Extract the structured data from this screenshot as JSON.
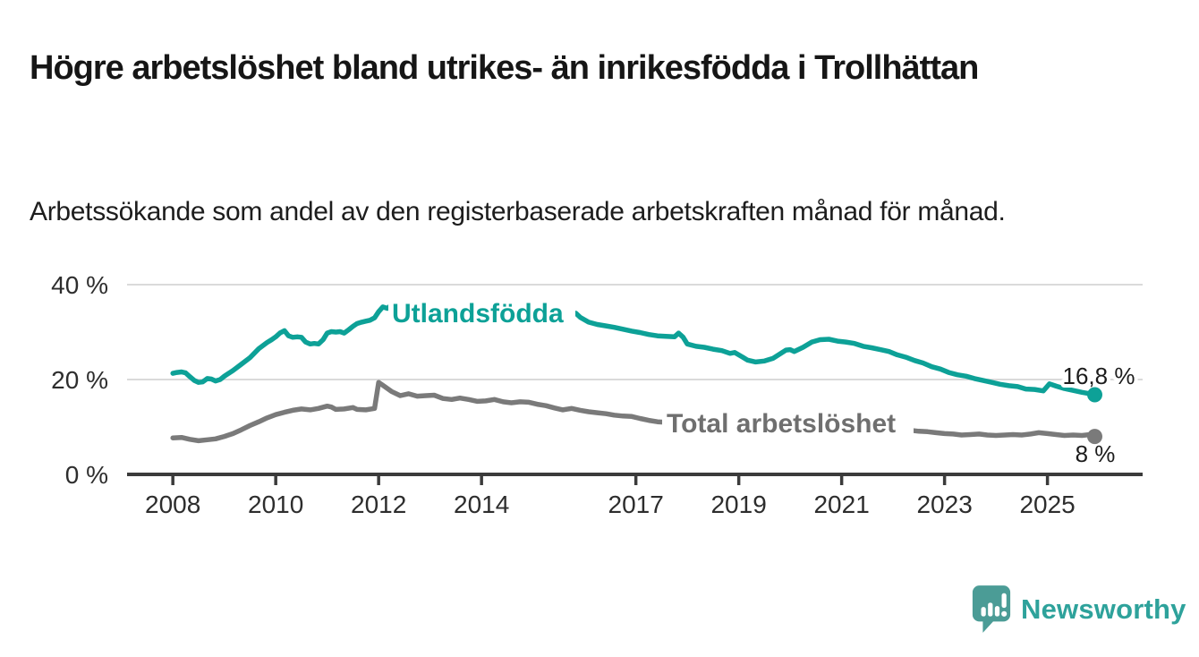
{
  "header": {
    "title": "Högre arbetslöshet bland utrikes- än inrikesfödda i Trollhättan",
    "subtitle": "Arbetssökande som andel av den registerbaserade arbetskraften månad för månad."
  },
  "colors": {
    "accent_teal": "#0da197",
    "line_gray": "#7a7a7a",
    "axis": "#3b3b3b",
    "gridline": "#dadada",
    "text_dark": "#161616",
    "logo_teal": "#4b9c96"
  },
  "logo": {
    "text": "Newsworthy",
    "icon": "newsworthy-speech-bubble-bars-icon"
  },
  "chart_data": {
    "type": "line",
    "title": "Högre arbetslöshet bland utrikes- än inrikesfödda i Trollhättan",
    "subtitle": "Arbetssökande som andel av den registerbaserade arbetskraften månad för månad.",
    "unit": "%",
    "grid": true,
    "legend_position": "inline-labels",
    "xlim": [
      2007.11,
      2026.85
    ],
    "ylim": [
      0,
      44
    ],
    "y_ticks": [
      {
        "value": 0,
        "label": "0 %"
      },
      {
        "value": 20,
        "label": "20 %"
      },
      {
        "value": 40,
        "label": "40 %"
      }
    ],
    "x_ticks": [
      {
        "year": 2008,
        "label": "2008"
      },
      {
        "year": 2010,
        "label": "2010"
      },
      {
        "year": 2012,
        "label": "2012"
      },
      {
        "year": 2014,
        "label": "2014"
      },
      {
        "year": 2017,
        "label": "2017"
      },
      {
        "year": 2019,
        "label": "2019"
      },
      {
        "year": 2021,
        "label": "2021"
      },
      {
        "year": 2023,
        "label": "2023"
      },
      {
        "year": 2025,
        "label": "2025"
      }
    ],
    "series": [
      {
        "name": "Utlandsfödda",
        "color": "#0da197",
        "end_label": "16,8 %",
        "end_value": 16.8,
        "points": [
          [
            2008.0,
            21.3
          ],
          [
            2008.08,
            21.5
          ],
          [
            2008.17,
            21.6
          ],
          [
            2008.25,
            21.4
          ],
          [
            2008.33,
            20.6
          ],
          [
            2008.42,
            19.8
          ],
          [
            2008.5,
            19.4
          ],
          [
            2008.58,
            19.5
          ],
          [
            2008.67,
            20.2
          ],
          [
            2008.75,
            20.1
          ],
          [
            2008.83,
            19.7
          ],
          [
            2008.92,
            20.0
          ],
          [
            2009.0,
            20.7
          ],
          [
            2009.17,
            21.9
          ],
          [
            2009.33,
            23.2
          ],
          [
            2009.5,
            24.6
          ],
          [
            2009.67,
            26.5
          ],
          [
            2009.83,
            27.8
          ],
          [
            2009.92,
            28.4
          ],
          [
            2010.0,
            29.0
          ],
          [
            2010.08,
            29.8
          ],
          [
            2010.17,
            30.3
          ],
          [
            2010.25,
            29.2
          ],
          [
            2010.33,
            28.9
          ],
          [
            2010.42,
            29.0
          ],
          [
            2010.5,
            28.9
          ],
          [
            2010.58,
            27.9
          ],
          [
            2010.67,
            27.5
          ],
          [
            2010.75,
            27.6
          ],
          [
            2010.83,
            27.5
          ],
          [
            2010.92,
            28.4
          ],
          [
            2011.0,
            29.8
          ],
          [
            2011.08,
            30.1
          ],
          [
            2011.17,
            30.0
          ],
          [
            2011.25,
            30.1
          ],
          [
            2011.33,
            29.8
          ],
          [
            2011.42,
            30.5
          ],
          [
            2011.5,
            31.2
          ],
          [
            2011.58,
            31.8
          ],
          [
            2011.67,
            32.1
          ],
          [
            2011.75,
            32.3
          ],
          [
            2011.83,
            32.5
          ],
          [
            2011.92,
            33.0
          ],
          [
            2012.0,
            34.3
          ],
          [
            2012.08,
            35.3
          ],
          [
            2012.17,
            35.0
          ],
          [
            2012.25,
            35.7
          ],
          [
            2012.33,
            35.9
          ],
          [
            2012.42,
            35.6
          ],
          [
            2012.75,
            35.2
          ],
          [
            2013.0,
            35.3
          ],
          [
            2013.5,
            34.8
          ],
          [
            2014.0,
            34.5
          ],
          [
            2014.5,
            34.2
          ],
          [
            2015.0,
            34.0
          ],
          [
            2015.5,
            34.2
          ],
          [
            2015.75,
            34.1
          ],
          [
            2015.83,
            34.0
          ],
          [
            2015.92,
            33.1
          ],
          [
            2016.08,
            32.1
          ],
          [
            2016.25,
            31.6
          ],
          [
            2016.42,
            31.3
          ],
          [
            2016.58,
            31.0
          ],
          [
            2016.75,
            30.6
          ],
          [
            2016.92,
            30.2
          ],
          [
            2017.08,
            29.9
          ],
          [
            2017.25,
            29.5
          ],
          [
            2017.42,
            29.2
          ],
          [
            2017.58,
            29.1
          ],
          [
            2017.75,
            29.0
          ],
          [
            2017.83,
            29.8
          ],
          [
            2017.92,
            28.9
          ],
          [
            2018.0,
            27.5
          ],
          [
            2018.17,
            27.0
          ],
          [
            2018.33,
            26.8
          ],
          [
            2018.5,
            26.4
          ],
          [
            2018.67,
            26.1
          ],
          [
            2018.83,
            25.5
          ],
          [
            2018.92,
            25.7
          ],
          [
            2019.08,
            24.7
          ],
          [
            2019.17,
            24.1
          ],
          [
            2019.33,
            23.7
          ],
          [
            2019.5,
            23.9
          ],
          [
            2019.67,
            24.5
          ],
          [
            2019.83,
            25.6
          ],
          [
            2019.92,
            26.2
          ],
          [
            2020.0,
            26.3
          ],
          [
            2020.08,
            25.9
          ],
          [
            2020.25,
            26.8
          ],
          [
            2020.42,
            27.9
          ],
          [
            2020.58,
            28.4
          ],
          [
            2020.75,
            28.5
          ],
          [
            2020.92,
            28.1
          ],
          [
            2021.08,
            27.9
          ],
          [
            2021.25,
            27.6
          ],
          [
            2021.42,
            27.0
          ],
          [
            2021.58,
            26.7
          ],
          [
            2021.75,
            26.3
          ],
          [
            2021.92,
            25.9
          ],
          [
            2022.08,
            25.2
          ],
          [
            2022.25,
            24.7
          ],
          [
            2022.42,
            24.0
          ],
          [
            2022.58,
            23.5
          ],
          [
            2022.75,
            22.7
          ],
          [
            2022.92,
            22.2
          ],
          [
            2023.08,
            21.5
          ],
          [
            2023.25,
            21.0
          ],
          [
            2023.42,
            20.7
          ],
          [
            2023.58,
            20.2
          ],
          [
            2023.75,
            19.8
          ],
          [
            2023.92,
            19.4
          ],
          [
            2024.08,
            19.0
          ],
          [
            2024.25,
            18.7
          ],
          [
            2024.42,
            18.5
          ],
          [
            2024.58,
            18.0
          ],
          [
            2024.75,
            17.9
          ],
          [
            2024.92,
            17.6
          ],
          [
            2025.04,
            19.1
          ],
          [
            2025.17,
            18.6
          ],
          [
            2025.33,
            18.1
          ],
          [
            2025.5,
            17.7
          ],
          [
            2025.67,
            17.3
          ],
          [
            2025.83,
            17.0
          ],
          [
            2025.92,
            16.8
          ]
        ]
      },
      {
        "name": "Total arbetslöshet",
        "color": "#7a7a7a",
        "end_label": "8 %",
        "end_value": 8.0,
        "points": [
          [
            2008.0,
            7.7
          ],
          [
            2008.17,
            7.8
          ],
          [
            2008.33,
            7.4
          ],
          [
            2008.5,
            7.1
          ],
          [
            2008.67,
            7.3
          ],
          [
            2008.83,
            7.5
          ],
          [
            2009.0,
            8.0
          ],
          [
            2009.17,
            8.6
          ],
          [
            2009.33,
            9.4
          ],
          [
            2009.5,
            10.3
          ],
          [
            2009.67,
            11.1
          ],
          [
            2009.83,
            11.9
          ],
          [
            2010.0,
            12.6
          ],
          [
            2010.17,
            13.1
          ],
          [
            2010.33,
            13.5
          ],
          [
            2010.5,
            13.8
          ],
          [
            2010.67,
            13.6
          ],
          [
            2010.83,
            13.9
          ],
          [
            2011.0,
            14.4
          ],
          [
            2011.08,
            14.2
          ],
          [
            2011.17,
            13.7
          ],
          [
            2011.33,
            13.8
          ],
          [
            2011.5,
            14.1
          ],
          [
            2011.58,
            13.7
          ],
          [
            2011.75,
            13.6
          ],
          [
            2011.92,
            13.9
          ],
          [
            2012.0,
            19.4
          ],
          [
            2012.08,
            18.8
          ],
          [
            2012.25,
            17.5
          ],
          [
            2012.42,
            16.6
          ],
          [
            2012.58,
            17.0
          ],
          [
            2012.75,
            16.5
          ],
          [
            2012.92,
            16.6
          ],
          [
            2013.08,
            16.7
          ],
          [
            2013.25,
            16.0
          ],
          [
            2013.42,
            15.8
          ],
          [
            2013.58,
            16.1
          ],
          [
            2013.75,
            15.8
          ],
          [
            2013.92,
            15.4
          ],
          [
            2014.08,
            15.5
          ],
          [
            2014.25,
            15.8
          ],
          [
            2014.42,
            15.3
          ],
          [
            2014.58,
            15.1
          ],
          [
            2014.75,
            15.3
          ],
          [
            2014.92,
            15.2
          ],
          [
            2015.08,
            14.8
          ],
          [
            2015.25,
            14.5
          ],
          [
            2015.42,
            14.0
          ],
          [
            2015.58,
            13.6
          ],
          [
            2015.75,
            13.9
          ],
          [
            2015.92,
            13.5
          ],
          [
            2016.08,
            13.2
          ],
          [
            2016.25,
            13.0
          ],
          [
            2016.42,
            12.8
          ],
          [
            2016.58,
            12.5
          ],
          [
            2016.75,
            12.3
          ],
          [
            2016.92,
            12.2
          ],
          [
            2017.08,
            11.8
          ],
          [
            2017.25,
            11.4
          ],
          [
            2017.42,
            11.1
          ],
          [
            2017.58,
            11.0
          ],
          [
            2018.0,
            10.7
          ],
          [
            2018.5,
            10.5
          ],
          [
            2019.0,
            10.2
          ],
          [
            2019.5,
            10.0
          ],
          [
            2020.0,
            10.1
          ],
          [
            2020.5,
            10.0
          ],
          [
            2021.0,
            9.8
          ],
          [
            2021.5,
            9.6
          ],
          [
            2022.0,
            9.4
          ],
          [
            2022.33,
            9.3
          ],
          [
            2022.5,
            9.1
          ],
          [
            2022.67,
            9.0
          ],
          [
            2022.83,
            8.8
          ],
          [
            2023.0,
            8.6
          ],
          [
            2023.17,
            8.5
          ],
          [
            2023.33,
            8.3
          ],
          [
            2023.5,
            8.4
          ],
          [
            2023.67,
            8.5
          ],
          [
            2023.83,
            8.3
          ],
          [
            2024.0,
            8.2
          ],
          [
            2024.17,
            8.3
          ],
          [
            2024.33,
            8.4
          ],
          [
            2024.5,
            8.3
          ],
          [
            2024.67,
            8.5
          ],
          [
            2024.83,
            8.8
          ],
          [
            2025.0,
            8.6
          ],
          [
            2025.17,
            8.4
          ],
          [
            2025.33,
            8.2
          ],
          [
            2025.5,
            8.3
          ],
          [
            2025.67,
            8.2
          ],
          [
            2025.83,
            8.4
          ],
          [
            2025.92,
            8.0
          ]
        ]
      }
    ]
  }
}
